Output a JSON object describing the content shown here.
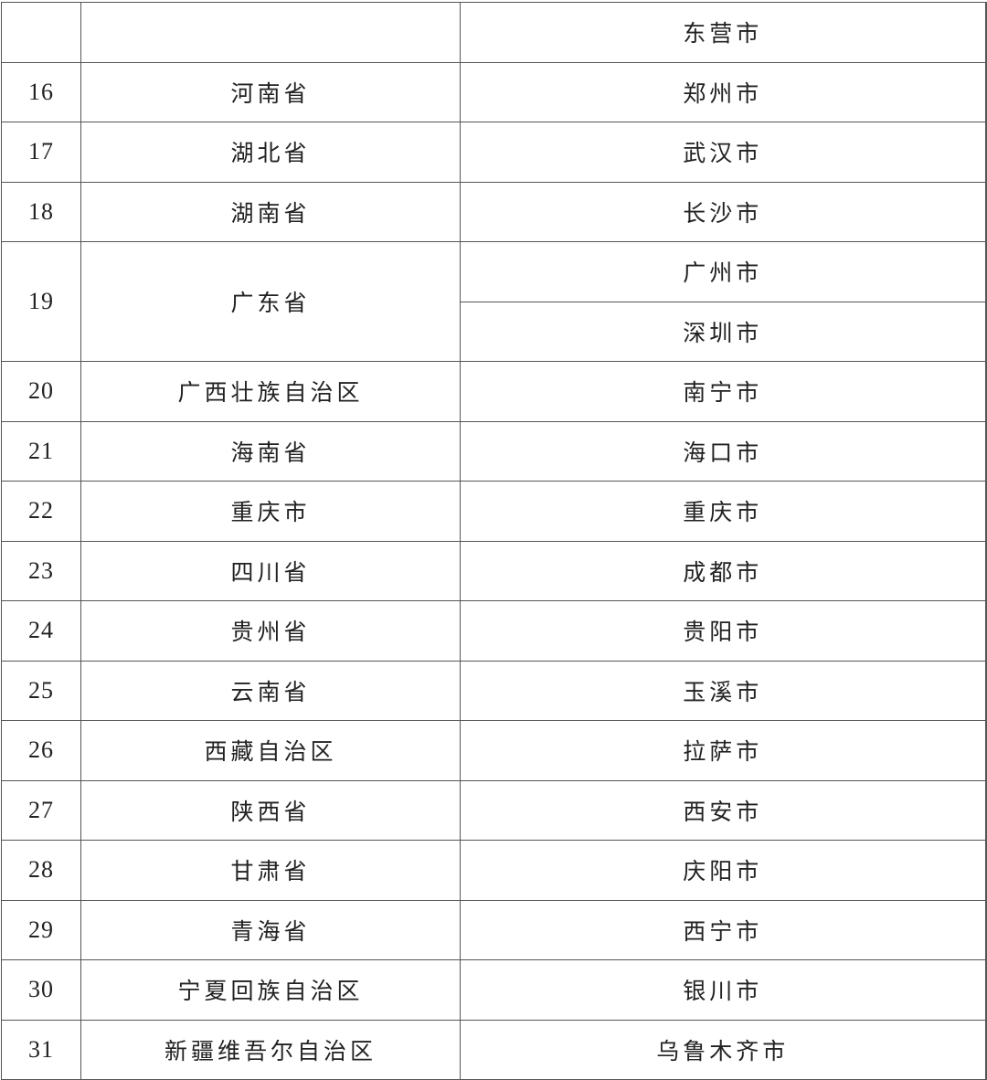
{
  "top_row": {
    "no": "",
    "province": "",
    "city": "东营市"
  },
  "rows": [
    {
      "no": "16",
      "province": "河南省",
      "cities": [
        "郑州市"
      ]
    },
    {
      "no": "17",
      "province": "湖北省",
      "cities": [
        "武汉市"
      ]
    },
    {
      "no": "18",
      "province": "湖南省",
      "cities": [
        "长沙市"
      ]
    },
    {
      "no": "19",
      "province": "广东省",
      "cities": [
        "广州市",
        "深圳市"
      ]
    },
    {
      "no": "20",
      "province": "广西壮族自治区",
      "cities": [
        "南宁市"
      ]
    },
    {
      "no": "21",
      "province": "海南省",
      "cities": [
        "海口市"
      ]
    },
    {
      "no": "22",
      "province": "重庆市",
      "cities": [
        "重庆市"
      ]
    },
    {
      "no": "23",
      "province": "四川省",
      "cities": [
        "成都市"
      ]
    },
    {
      "no": "24",
      "province": "贵州省",
      "cities": [
        "贵阳市"
      ]
    },
    {
      "no": "25",
      "province": "云南省",
      "cities": [
        "玉溪市"
      ]
    },
    {
      "no": "26",
      "province": "西藏自治区",
      "cities": [
        "拉萨市"
      ]
    },
    {
      "no": "27",
      "province": "陕西省",
      "cities": [
        "西安市"
      ]
    },
    {
      "no": "28",
      "province": "甘肃省",
      "cities": [
        "庆阳市"
      ]
    },
    {
      "no": "29",
      "province": "青海省",
      "cities": [
        "西宁市"
      ]
    },
    {
      "no": "30",
      "province": "宁夏回族自治区",
      "cities": [
        "银川市"
      ]
    },
    {
      "no": "31",
      "province": "新疆维吾尔自治区",
      "cities": [
        "乌鲁木齐市"
      ]
    }
  ]
}
